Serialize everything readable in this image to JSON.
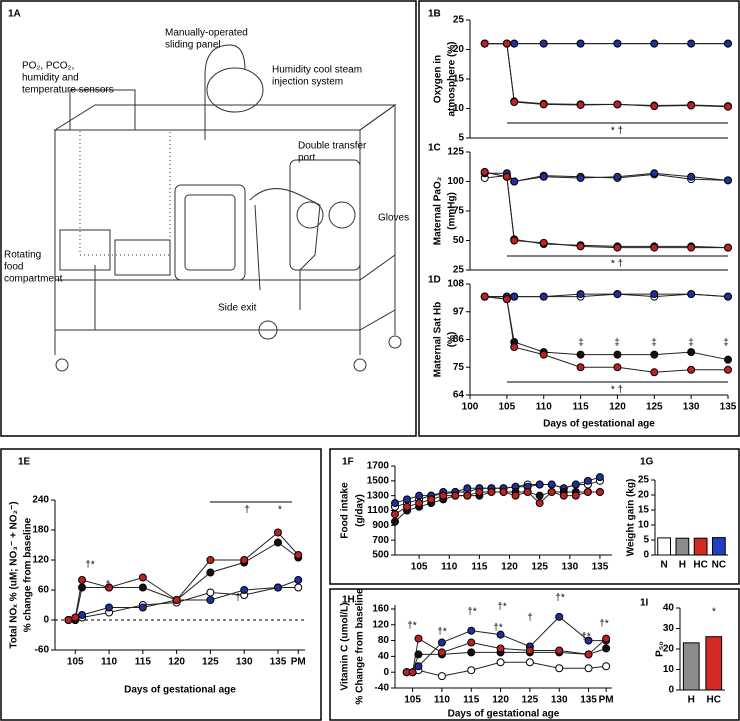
{
  "illustration": {
    "label": "1A",
    "labels": [
      [
        "Manually-operated",
        "sliding panel"
      ],
      [
        "PO₂, PCO₂,",
        "humidity and",
        "temperature sensors"
      ],
      [
        "Humidity cool steam",
        "injection system"
      ],
      [
        "Double transfer",
        "port"
      ],
      [
        "Gloves"
      ],
      [
        "Rotating",
        "food",
        "compartment"
      ],
      [
        "Side exit"
      ]
    ]
  },
  "chart_data": [
    {
      "type": "line",
      "label": "1B",
      "ylabel": [
        "Oxygen in",
        "atmosphere (%)"
      ],
      "xlim": [
        100,
        135
      ],
      "ylim": [
        5,
        25
      ],
      "yticks": [
        5,
        10,
        15,
        20,
        25
      ],
      "x": [
        102,
        105,
        106,
        110,
        115,
        120,
        125,
        130,
        135
      ],
      "series": [
        {
          "color": "#ffffff",
          "values": [
            21,
            21,
            21,
            21,
            21,
            21,
            21,
            21,
            21
          ]
        },
        {
          "color": "#1f2f9e",
          "values": [
            21,
            21,
            21,
            21,
            21,
            21,
            21,
            21,
            21
          ]
        },
        {
          "color": "#111111",
          "values": [
            21,
            21,
            11.2,
            10.8,
            10.7,
            10.7,
            10.5,
            10.6,
            10.4
          ]
        },
        {
          "color": "#c0201f",
          "values": [
            21,
            21,
            11.1,
            10.7,
            10.6,
            10.7,
            10.4,
            10.5,
            10.3
          ]
        }
      ],
      "annotations": [
        "* †"
      ]
    },
    {
      "type": "line",
      "label": "1C",
      "ylabel": [
        "Maternal PaO₂",
        "(mmHg)"
      ],
      "xlim": [
        100,
        135
      ],
      "ylim": [
        25,
        125
      ],
      "yticks": [
        25,
        50,
        75,
        100,
        125
      ],
      "x": [
        102,
        105,
        106,
        110,
        115,
        120,
        125,
        130,
        135
      ],
      "series": [
        {
          "color": "#ffffff",
          "values": [
            103,
            105,
            100,
            105,
            104,
            103,
            106,
            102,
            101
          ]
        },
        {
          "color": "#1f2f9e",
          "values": [
            107,
            107,
            100,
            104,
            103,
            104,
            107,
            104,
            101
          ]
        },
        {
          "color": "#111111",
          "values": [
            108,
            104,
            51,
            47,
            46,
            45,
            45,
            45,
            44
          ]
        },
        {
          "color": "#c0201f",
          "values": [
            108,
            104,
            50,
            48,
            45,
            44,
            44,
            44,
            44
          ]
        }
      ],
      "annotations": [
        "* †"
      ]
    },
    {
      "type": "line",
      "label": "1D",
      "ylabel": [
        "Maternal Sat Hb",
        "(%)"
      ],
      "xlabel": "Days of gestational age",
      "xlim": [
        100,
        135
      ],
      "ylim": [
        64,
        108
      ],
      "yticks": [
        64,
        75,
        86,
        97,
        108
      ],
      "xticks": [
        100,
        105,
        110,
        115,
        120,
        125,
        130,
        135
      ],
      "x": [
        102,
        105,
        106,
        110,
        115,
        120,
        125,
        130,
        135
      ],
      "series": [
        {
          "color": "#ffffff",
          "values": [
            103,
            103,
            103,
            103,
            103,
            104,
            103,
            104,
            103
          ]
        },
        {
          "color": "#1f2f9e",
          "values": [
            103,
            103,
            103,
            103,
            104,
            104,
            104,
            104,
            103
          ]
        },
        {
          "color": "#111111",
          "values": [
            103,
            102,
            85,
            81,
            80,
            80,
            80,
            81,
            78
          ]
        },
        {
          "color": "#c0201f",
          "values": [
            103,
            102,
            83,
            80,
            75,
            75,
            73,
            74,
            74
          ]
        }
      ],
      "annotations": [
        "‡",
        "‡",
        "‡",
        "‡",
        "‡",
        "* †"
      ]
    },
    {
      "type": "line",
      "label": "1E",
      "ylabel": [
        "Total NOₓ % (uM; NO₃⁻ + NO₂⁻)",
        "% change from baseline"
      ],
      "xlabel": "Days of gestational age",
      "xlim": [
        102,
        139
      ],
      "ylim": [
        -60,
        240
      ],
      "yticks": [
        -60,
        0,
        60,
        120,
        180,
        240
      ],
      "xticks": [
        105,
        110,
        115,
        120,
        125,
        130,
        135,
        {
          "value": 138,
          "label": "PM"
        }
      ],
      "zero_line": true,
      "x": [
        104,
        105,
        106,
        110,
        115,
        120,
        125,
        130,
        135,
        138
      ],
      "series": [
        {
          "color": "#ffffff",
          "values": [
            0,
            0,
            5,
            15,
            30,
            35,
            55,
            50,
            65,
            65
          ]
        },
        {
          "color": "#1f2f9e",
          "values": [
            0,
            0,
            10,
            25,
            25,
            40,
            40,
            60,
            65,
            80
          ]
        },
        {
          "color": "#111111",
          "values": [
            0,
            0,
            65,
            65,
            65,
            40,
            95,
            115,
            155,
            125
          ]
        },
        {
          "color": "#c0201f",
          "values": [
            0,
            5,
            80,
            65,
            85,
            40,
            120,
            120,
            175,
            130
          ]
        }
      ],
      "annotations": [
        "†*",
        "†",
        "†",
        "†",
        "*"
      ]
    },
    {
      "type": "line",
      "label": "1F",
      "ylabel": [
        "Food intake",
        "(g/day)"
      ],
      "xlim": [
        101,
        137
      ],
      "ylim": [
        500,
        1700
      ],
      "yticks": [
        500,
        700,
        900,
        1100,
        1300,
        1500,
        1700
      ],
      "xticks": [
        105,
        110,
        115,
        120,
        125,
        130,
        135
      ],
      "x": [
        101,
        103,
        105,
        107,
        109,
        111,
        113,
        115,
        117,
        119,
        121,
        123,
        125,
        127,
        129,
        131,
        133,
        135
      ],
      "series": [
        {
          "color": "#ffffff",
          "values": [
            1150,
            1200,
            1250,
            1300,
            1320,
            1350,
            1350,
            1400,
            1400,
            1400,
            1420,
            1450,
            1450,
            1450,
            1400,
            1450,
            1450,
            1500
          ]
        },
        {
          "color": "#1f2f9e",
          "values": [
            1200,
            1250,
            1300,
            1300,
            1350,
            1350,
            1400,
            1400,
            1400,
            1400,
            1420,
            1420,
            1450,
            1450,
            1400,
            1450,
            1500,
            1550
          ]
        },
        {
          "color": "#111111",
          "values": [
            950,
            1100,
            1150,
            1200,
            1250,
            1300,
            1300,
            1300,
            1350,
            1350,
            1350,
            1350,
            1300,
            1350,
            1350,
            1350,
            1350,
            1350
          ]
        },
        {
          "color": "#c0201f",
          "values": [
            1050,
            1150,
            1200,
            1250,
            1300,
            1300,
            1300,
            1350,
            1350,
            1350,
            1300,
            1350,
            1200,
            1350,
            1300,
            1300,
            1350,
            1350
          ]
        }
      ]
    },
    {
      "type": "bar",
      "label": "1G",
      "ylabel": [
        "Weight gain (kg)"
      ],
      "ylim": [
        0,
        25
      ],
      "yticks": [
        0,
        5,
        10,
        15,
        20,
        25
      ],
      "categories": [
        "N",
        "H",
        "HC",
        "NC"
      ],
      "values": [
        5.7,
        5.6,
        5.6,
        5.8
      ],
      "colors": [
        "#ffffff",
        "#8c8c8c",
        "#d42a26",
        "#1f3fc0"
      ]
    },
    {
      "type": "line",
      "label": "1H",
      "ylabel": [
        "Vitamin C (umol/L)",
        "% Change from baseline"
      ],
      "xlabel": "Days of gestational age",
      "xlim": [
        102,
        139
      ],
      "ylim": [
        -40,
        170
      ],
      "yticks": [
        -40,
        0,
        40,
        80,
        120,
        160
      ],
      "xticks": [
        105,
        110,
        115,
        120,
        125,
        130,
        {
          "value": 135,
          "label": "135"
        },
        {
          "value": 138,
          "label": "PM"
        }
      ],
      "x": [
        104,
        105,
        106,
        110,
        115,
        120,
        125,
        130,
        135,
        138
      ],
      "series": [
        {
          "color": "#ffffff",
          "values": [
            0,
            0,
            5,
            -10,
            5,
            25,
            25,
            10,
            10,
            15
          ]
        },
        {
          "color": "#1f2f9e",
          "values": [
            0,
            0,
            15,
            75,
            105,
            95,
            65,
            140,
            80,
            80
          ]
        },
        {
          "color": "#111111",
          "values": [
            0,
            0,
            45,
            45,
            50,
            50,
            50,
            50,
            45,
            60
          ]
        },
        {
          "color": "#c0201f",
          "values": [
            0,
            0,
            85,
            50,
            75,
            60,
            55,
            55,
            45,
            85
          ]
        }
      ],
      "annotations": [
        "†*",
        "†*",
        "†*",
        "†*",
        "†*",
        "†",
        "†*",
        "†*",
        "†*"
      ]
    },
    {
      "type": "bar",
      "label": "1I",
      "ylabel": [
        "P₅₀"
      ],
      "ylim": [
        0,
        40
      ],
      "yticks": [
        0,
        10,
        20,
        30,
        40
      ],
      "categories": [
        "H",
        "HC"
      ],
      "values": [
        23,
        26
      ],
      "colors": [
        "#8c8c8c",
        "#d42a26"
      ],
      "annotations": [
        "*"
      ]
    }
  ]
}
